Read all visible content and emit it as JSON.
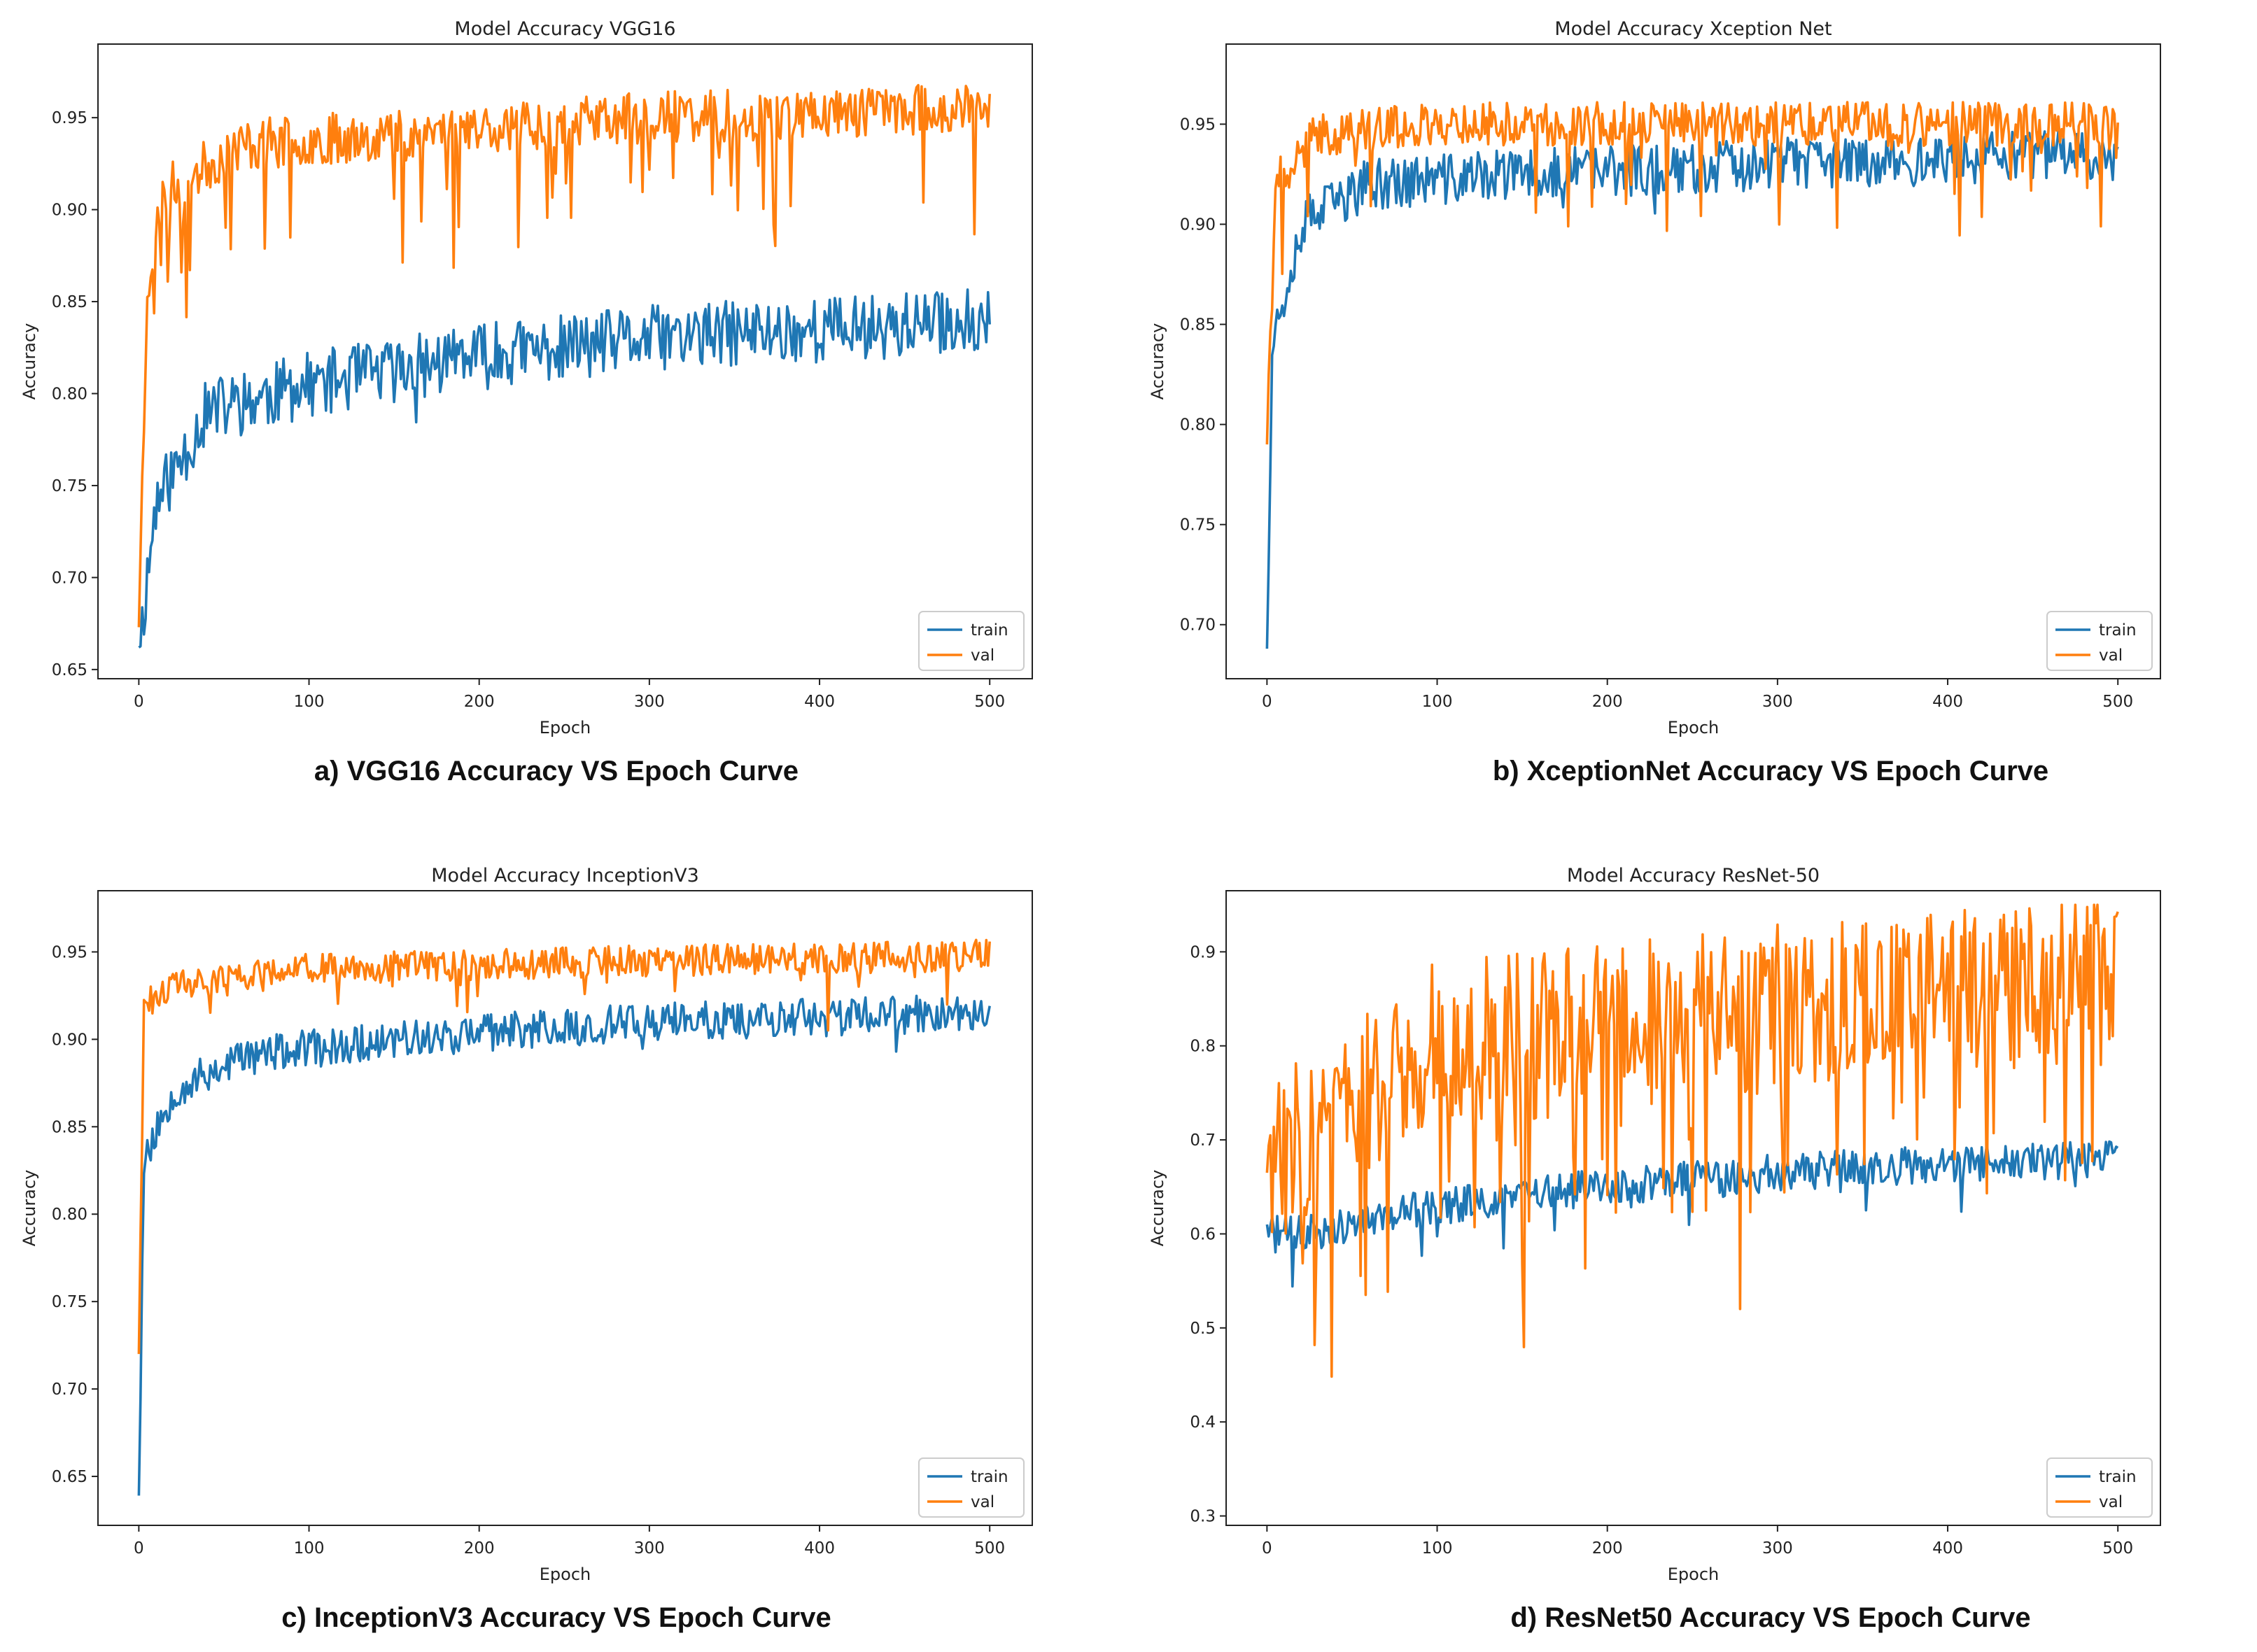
{
  "chart_data": [
    {
      "type": "line",
      "title": "Model Accuracy VGG16",
      "caption": "a) VGG16 Accuracy VS Epoch Curve",
      "xlabel": "Epoch",
      "ylabel": "Accuracy",
      "xlim": [
        -24,
        525
      ],
      "ylim": [
        0.645,
        0.99
      ],
      "xticks": [
        0,
        100,
        200,
        300,
        400,
        500
      ],
      "xtick_labels": [
        "0",
        "100",
        "200",
        "300",
        "400",
        "500"
      ],
      "yticks": [
        0.65,
        0.7,
        0.75,
        0.8,
        0.85,
        0.9,
        0.95
      ],
      "ytick_labels": [
        "0.65",
        "0.70",
        "0.75",
        "0.80",
        "0.85",
        "0.90",
        "0.95"
      ],
      "legend": "lower-right",
      "epochs": 500,
      "series": [
        {
          "name": "train",
          "color": "#1f77b4",
          "seed": 11,
          "start": 0.662,
          "trend": [
            [
              0,
              0.66
            ],
            [
              10,
              0.74
            ],
            [
              40,
              0.79
            ],
            [
              100,
              0.805
            ],
            [
              200,
              0.82
            ],
            [
              300,
              0.83
            ],
            [
              400,
              0.835
            ],
            [
              500,
              0.84
            ]
          ],
          "noise": 0.018,
          "spike_prob": 0.02,
          "spike_amp": 0.035
        },
        {
          "name": "val",
          "color": "#ff7f0e",
          "seed": 23,
          "start": 0.673,
          "trend": [
            [
              0,
              0.675
            ],
            [
              5,
              0.86
            ],
            [
              15,
              0.91
            ],
            [
              60,
              0.935
            ],
            [
              200,
              0.945
            ],
            [
              300,
              0.95
            ],
            [
              500,
              0.955
            ]
          ],
          "noise": 0.014,
          "spike_prob": 0.08,
          "spike_amp": 0.07,
          "cap": 0.977
        }
      ]
    },
    {
      "type": "line",
      "title": "Model Accuracy Xception Net",
      "caption": "b) XceptionNet Accuracy VS Epoch Curve",
      "xlabel": "Epoch",
      "ylabel": "Accuracy",
      "xlim": [
        -24,
        525
      ],
      "ylim": [
        0.673,
        0.99
      ],
      "xticks": [
        0,
        100,
        200,
        300,
        400,
        500
      ],
      "xtick_labels": [
        "0",
        "100",
        "200",
        "300",
        "400",
        "500"
      ],
      "yticks": [
        0.7,
        0.75,
        0.8,
        0.85,
        0.9,
        0.95
      ],
      "ytick_labels": [
        "0.70",
        "0.75",
        "0.80",
        "0.85",
        "0.90",
        "0.95"
      ],
      "legend": "lower-right",
      "epochs": 500,
      "series": [
        {
          "name": "train",
          "color": "#1f77b4",
          "seed": 37,
          "start": 0.688,
          "trend": [
            [
              0,
              0.69
            ],
            [
              3,
              0.84
            ],
            [
              20,
              0.9
            ],
            [
              60,
              0.92
            ],
            [
              150,
              0.925
            ],
            [
              300,
              0.93
            ],
            [
              500,
              0.935
            ]
          ],
          "noise": 0.013,
          "spike_prob": 0.02,
          "spike_amp": 0.03
        },
        {
          "name": "val",
          "color": "#ff7f0e",
          "seed": 41,
          "start": 0.79,
          "trend": [
            [
              0,
              0.79
            ],
            [
              5,
              0.92
            ],
            [
              30,
              0.945
            ],
            [
              100,
              0.95
            ],
            [
              300,
              0.95
            ],
            [
              500,
              0.95
            ]
          ],
          "noise": 0.011,
          "spike_prob": 0.08,
          "spike_amp": 0.06,
          "cap": 0.977
        }
      ]
    },
    {
      "type": "line",
      "title": "Model Accuracy InceptionV3",
      "caption": "c) InceptionV3 Accuracy VS Epoch Curve",
      "xlabel": "Epoch",
      "ylabel": "Accuracy",
      "xlim": [
        -24,
        525
      ],
      "ylim": [
        0.622,
        0.985
      ],
      "xticks": [
        0,
        100,
        200,
        300,
        400,
        500
      ],
      "xtick_labels": [
        "0",
        "100",
        "200",
        "300",
        "400",
        "500"
      ],
      "yticks": [
        0.65,
        0.7,
        0.75,
        0.8,
        0.85,
        0.9,
        0.95
      ],
      "ytick_labels": [
        "0.65",
        "0.70",
        "0.75",
        "0.80",
        "0.85",
        "0.90",
        "0.95"
      ],
      "legend": "lower-right",
      "epochs": 500,
      "series": [
        {
          "name": "train",
          "color": "#1f77b4",
          "seed": 53,
          "start": 0.639,
          "trend": [
            [
              0,
              0.64
            ],
            [
              3,
              0.83
            ],
            [
              20,
              0.87
            ],
            [
              60,
              0.89
            ],
            [
              150,
              0.9
            ],
            [
              300,
              0.91
            ],
            [
              500,
              0.915
            ]
          ],
          "noise": 0.011,
          "spike_prob": 0.02,
          "spike_amp": 0.025
        },
        {
          "name": "val",
          "color": "#ff7f0e",
          "seed": 61,
          "start": 0.72,
          "trend": [
            [
              0,
              0.72
            ],
            [
              3,
              0.92
            ],
            [
              20,
              0.93
            ],
            [
              100,
              0.94
            ],
            [
              300,
              0.945
            ],
            [
              500,
              0.948
            ]
          ],
          "noise": 0.009,
          "spike_prob": 0.05,
          "spike_amp": 0.04,
          "cap": 0.969
        }
      ]
    },
    {
      "type": "line",
      "title": "Model Accuracy ResNet-50",
      "caption": "d) ResNet50 Accuracy VS Epoch Curve",
      "xlabel": "Epoch",
      "ylabel": "Accuracy",
      "xlim": [
        -24,
        525
      ],
      "ylim": [
        0.29,
        0.965
      ],
      "xticks": [
        0,
        100,
        200,
        300,
        400,
        500
      ],
      "xtick_labels": [
        "0",
        "100",
        "200",
        "300",
        "400",
        "500"
      ],
      "yticks": [
        0.3,
        0.4,
        0.5,
        0.6,
        0.7,
        0.8,
        0.9
      ],
      "ytick_labels": [
        "0.3",
        "0.4",
        "0.5",
        "0.6",
        "0.7",
        "0.8",
        "0.9"
      ],
      "legend": "lower-right",
      "epochs": 500,
      "series": [
        {
          "name": "train",
          "color": "#1f77b4",
          "seed": 71,
          "start": 0.61,
          "trend": [
            [
              0,
              0.6
            ],
            [
              20,
              0.6
            ],
            [
              100,
              0.63
            ],
            [
              200,
              0.65
            ],
            [
              300,
              0.665
            ],
            [
              400,
              0.675
            ],
            [
              500,
              0.68
            ]
          ],
          "noise": 0.02,
          "spike_prob": 0.04,
          "spike_amp": 0.05
        },
        {
          "name": "val",
          "color": "#ff7f0e",
          "seed": 83,
          "start": 0.665,
          "trend": [
            [
              0,
              0.665
            ],
            [
              30,
              0.72
            ],
            [
              100,
              0.8
            ],
            [
              200,
              0.82
            ],
            [
              300,
              0.84
            ],
            [
              400,
              0.86
            ],
            [
              500,
              0.87
            ]
          ],
          "noise": 0.09,
          "spike_prob": 0.12,
          "spike_amp": 0.25,
          "cap": 0.95,
          "floor": 0.33
        }
      ]
    }
  ]
}
